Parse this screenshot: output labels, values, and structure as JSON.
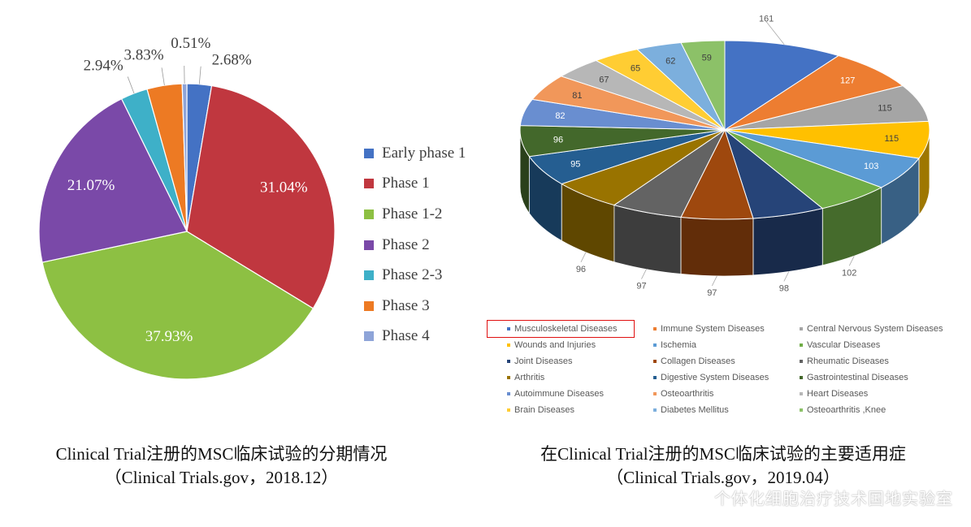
{
  "chart_data": [
    {
      "type": "pie",
      "categories": [
        "Early phase 1",
        "Phase 1",
        "Phase 1-2",
        "Phase 2",
        "Phase 2-3",
        "Phase 3",
        "Phase 4"
      ],
      "values": [
        2.68,
        31.04,
        37.93,
        21.07,
        2.94,
        3.83,
        0.51
      ],
      "data_labels": [
        "2.68%",
        "31.04%",
        "37.93%",
        "21.07%",
        "2.94%",
        "3.83%",
        "0.51%"
      ],
      "colors": [
        "#4472c4",
        "#c0373f",
        "#8dc043",
        "#7a49a8",
        "#3eb0c8",
        "#ed7a23",
        "#8ea4d8"
      ],
      "legend_position": "right",
      "caption_line1": "Clinical Trial注册的MSC临床试验的分期情况",
      "caption_line2": "（Clinical Trials.gov，2018.12）"
    },
    {
      "type": "pie",
      "style": "3d",
      "categories": [
        "Musculoskeletal Diseases",
        "Immune System Diseases",
        "Central Nervous  System Diseases",
        "Wounds and Injuries",
        "Ischemia",
        "Vascular Diseases",
        "Joint Diseases",
        "Collagen Diseases",
        "Rheumatic  Diseases",
        "Arthritis",
        "Digestive  System Diseases",
        "Gastrointestinal Diseases",
        "Autoimmune  Diseases",
        "Osteoarthritis",
        "Heart  Diseases",
        "Brain  Diseases",
        "Diabetes Mellitus",
        "Osteoarthritis ,Knee"
      ],
      "values": [
        161,
        127,
        115,
        115,
        103,
        102,
        98,
        97,
        97,
        96,
        95,
        96,
        82,
        81,
        67,
        65,
        62,
        59
      ],
      "data_labels": [
        "161",
        "127",
        "115",
        "115",
        "103",
        "102",
        "98",
        "97",
        "97",
        "96",
        "95",
        "96",
        "82",
        "81",
        "67",
        "65",
        "62",
        "59"
      ],
      "colors": [
        "#4472c4",
        "#ed7d31",
        "#a5a5a5",
        "#ffc000",
        "#5b9bd5",
        "#70ad47",
        "#264478",
        "#9e480e",
        "#636363",
        "#997300",
        "#255e91",
        "#43682b",
        "#698ed0",
        "#f1975a",
        "#b7b7b7",
        "#ffcd33",
        "#7cafdd",
        "#8cc168"
      ],
      "legend_position": "bottom",
      "highlighted_legend_entry": "Musculoskeletal Diseases",
      "caption_line1": "在Clinical Trial注册的MSC临床试验的主要适用症",
      "caption_line2": "（Clinical Trials.gov，2019.04）"
    }
  ],
  "watermark": "个体化细胞治疗技术国地实验室"
}
